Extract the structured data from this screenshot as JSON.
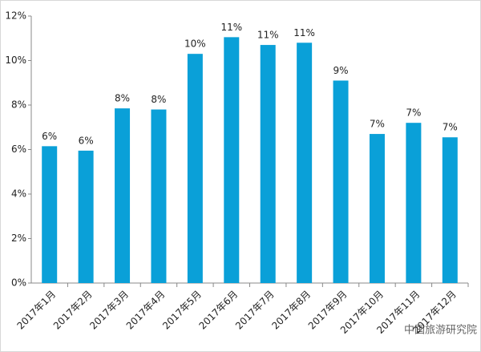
{
  "chart_data": {
    "type": "bar",
    "categories": [
      "2017年1月",
      "2017年2月",
      "2017年3月",
      "2017年4月",
      "2017年5月",
      "2017年6月",
      "2017年7月",
      "2017年8月",
      "2017年9月",
      "2017年10月",
      "2017年11月",
      "2017年12月"
    ],
    "values": [
      6.15,
      5.95,
      7.85,
      7.8,
      10.3,
      11.05,
      10.7,
      10.8,
      9.1,
      6.7,
      7.2,
      6.55
    ],
    "value_labels": [
      "6%",
      "6%",
      "8%",
      "8%",
      "10%",
      "11%",
      "11%",
      "11%",
      "9%",
      "7%",
      "7%",
      "7%"
    ],
    "color": "#0aa0d8",
    "ylim": [
      0,
      12
    ],
    "yticks": [
      {
        "value": 0,
        "label": "0%"
      },
      {
        "value": 2,
        "label": "2%"
      },
      {
        "value": 4,
        "label": "4%"
      },
      {
        "value": 6,
        "label": "6%"
      },
      {
        "value": 8,
        "label": "8%"
      },
      {
        "value": 10,
        "label": "10%"
      },
      {
        "value": 12,
        "label": "12%"
      }
    ],
    "watermark": "中国旅游研究院"
  }
}
